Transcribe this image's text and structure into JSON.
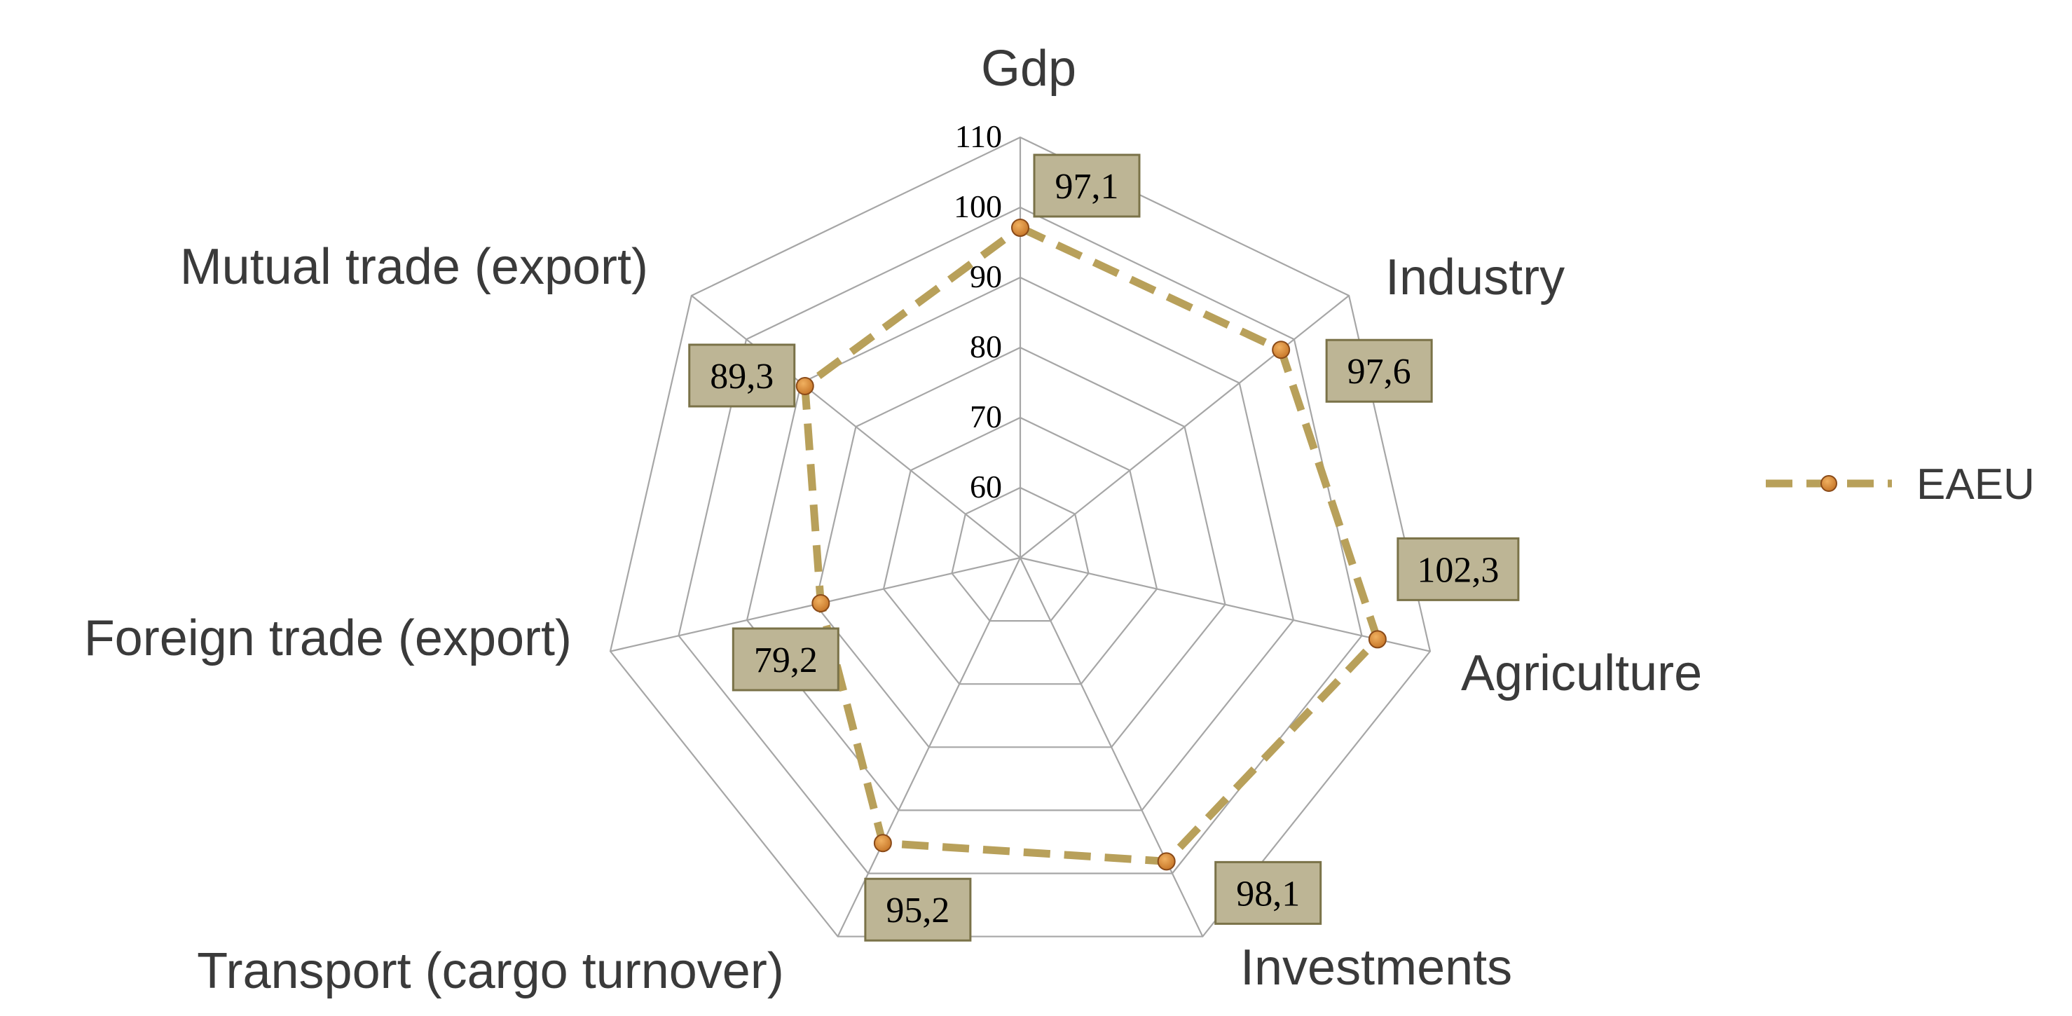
{
  "chart_data": {
    "type": "radar",
    "title": "",
    "categories": [
      "Gdp",
      "Industry",
      "Agriculture",
      "Investments",
      "Transport (cargo turnover)",
      "Foreign trade (export)",
      "Mutual trade (export)"
    ],
    "series": [
      {
        "name": "EAEU",
        "values": [
          97.1,
          97.6,
          102.3,
          98.1,
          95.2,
          79.2,
          89.3
        ],
        "labels": [
          "97,1",
          "97,6",
          "102,3",
          "98,1",
          "95,2",
          "79,2",
          "89,3"
        ]
      }
    ],
    "rlim": [
      50,
      110
    ],
    "ticks": [
      60,
      70,
      80,
      90,
      100,
      110
    ],
    "tick_labels": [
      "60",
      "70",
      "80",
      "90",
      "100",
      "110"
    ],
    "grid": true,
    "legend_position": "right",
    "colors": {
      "series_line": "#B8A05A",
      "marker_fill": "#C8782A",
      "marker_highlight": "#F0B060",
      "label_box_fill": "#BDB595",
      "label_box_border": "#7A7248",
      "grid": "#A6A6A6"
    }
  }
}
